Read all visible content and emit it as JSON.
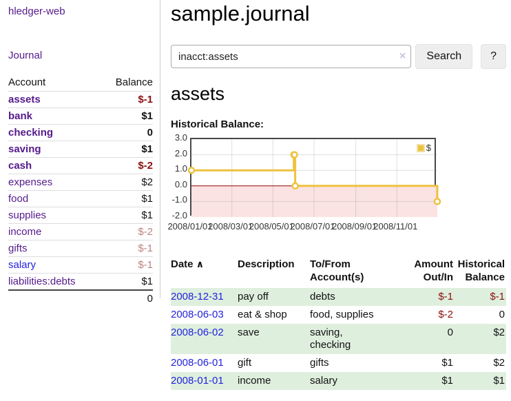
{
  "app": {
    "brand": "hledger-web"
  },
  "sidebar": {
    "journal_link": "Journal",
    "accounts": {
      "header": {
        "account": "Account",
        "balance": "Balance"
      },
      "rows": [
        {
          "name": "assets",
          "balance": "$-1",
          "depth": 1,
          "bold": true,
          "balance_tone": "neg-strong",
          "link_tone": "purple"
        },
        {
          "name": "bank",
          "balance": "$1",
          "depth": 2,
          "bold": true,
          "balance_tone": "normal",
          "link_tone": "purple"
        },
        {
          "name": "checking",
          "balance": "0",
          "depth": 3,
          "bold": true,
          "balance_tone": "normal",
          "link_tone": "purple"
        },
        {
          "name": "saving",
          "balance": "$1",
          "depth": 3,
          "bold": true,
          "balance_tone": "normal",
          "link_tone": "purple"
        },
        {
          "name": "cash",
          "balance": "$-2",
          "depth": 2,
          "bold": true,
          "balance_tone": "neg-strong",
          "link_tone": "purple"
        },
        {
          "name": "expenses",
          "balance": "$2",
          "depth": 1,
          "bold": false,
          "balance_tone": "normal",
          "link_tone": "purple"
        },
        {
          "name": "food",
          "balance": "$1",
          "depth": 2,
          "bold": false,
          "balance_tone": "normal",
          "link_tone": "purple"
        },
        {
          "name": "supplies",
          "balance": "$1",
          "depth": 2,
          "bold": false,
          "balance_tone": "normal",
          "link_tone": "purple"
        },
        {
          "name": "income",
          "balance": "$-2",
          "depth": 1,
          "bold": false,
          "balance_tone": "neg-soft",
          "link_tone": "purple"
        },
        {
          "name": "gifts",
          "balance": "$-1",
          "depth": 2,
          "bold": false,
          "balance_tone": "neg-soft",
          "link_tone": "purple"
        },
        {
          "name": "salary",
          "balance": "$-1",
          "depth": 2,
          "bold": false,
          "balance_tone": "neg-soft",
          "link_tone": "blue"
        },
        {
          "name": "liabilities:debts",
          "balance": "$1",
          "depth": 1,
          "bold": false,
          "balance_tone": "normal",
          "link_tone": "purple"
        }
      ],
      "total": "0"
    }
  },
  "main": {
    "title": "sample.journal",
    "search": {
      "value": "inacct:assets",
      "clear_icon": "×",
      "search_button": "Search",
      "help_button": "?"
    },
    "account_heading": "assets",
    "chart_label": "Historical Balance:"
  },
  "chart_data": {
    "type": "line",
    "title": "Historical Balance",
    "step": true,
    "series": [
      {
        "name": "$",
        "color": "#EDC240",
        "points": [
          [
            "2008-01-01",
            1
          ],
          [
            "2008-06-01",
            2
          ],
          [
            "2008-06-02",
            2
          ],
          [
            "2008-06-03",
            0
          ],
          [
            "2008-12-31",
            -1
          ]
        ]
      }
    ],
    "x_range": [
      "2008-01-01",
      "2008-12-31"
    ],
    "x_tick_dates": [
      "2008-01-01",
      "2008-03-01",
      "2008-05-01",
      "2008-07-01",
      "2008-09-01",
      "2008-11-01"
    ],
    "x_tick_labels": [
      "2008/01/01",
      "2008/03/01",
      "2008/05/01",
      "2008/07/01",
      "2008/09/01",
      "2008/11/01"
    ],
    "y_ticks": [
      "3.0",
      "2.0",
      "1.0",
      "0.0",
      "-1.0",
      "-2.0"
    ],
    "ylim": [
      -2,
      3
    ],
    "grid": true,
    "negative_region_fill": "#FBE3E3",
    "zero_line_color": "#8B0000",
    "legend": {
      "label": "$",
      "position": "top-right"
    }
  },
  "register": {
    "headers": {
      "date": "Date",
      "sort_icon": "∧",
      "description": "Description",
      "accounts": "To/From\nAccount(s)",
      "amount": "Amount\nOut/In",
      "balance": "Historical\nBalance"
    },
    "rows": [
      {
        "date": "2008-12-31",
        "description": "pay off",
        "accounts": "debts",
        "amount": "$-1",
        "amount_tone": "neg-strong",
        "balance": "$-1",
        "balance_tone": "neg-strong",
        "green": true
      },
      {
        "date": "2008-06-03",
        "description": "eat & shop",
        "accounts": "food, supplies",
        "amount": "$-2",
        "amount_tone": "neg-strong",
        "balance": "0",
        "balance_tone": "normal",
        "green": false
      },
      {
        "date": "2008-06-02",
        "description": "save",
        "accounts": "saving,\nchecking",
        "amount": "0",
        "amount_tone": "normal",
        "balance": "$2",
        "balance_tone": "normal",
        "green": true
      },
      {
        "date": "2008-06-01",
        "description": "gift",
        "accounts": "gifts",
        "amount": "$1",
        "amount_tone": "normal",
        "balance": "$2",
        "balance_tone": "normal",
        "green": false
      },
      {
        "date": "2008-01-01",
        "description": "income",
        "accounts": "salary",
        "amount": "$1",
        "amount_tone": "normal",
        "balance": "$1",
        "balance_tone": "normal",
        "green": true
      }
    ]
  },
  "colors": {
    "link_purple": "#551A8B",
    "link_blue": "#2323DD",
    "negative_strong": "#8B1010",
    "negative_soft": "#BD8282",
    "row_green": "#DFEFDE",
    "series_gold": "#EDC240"
  }
}
